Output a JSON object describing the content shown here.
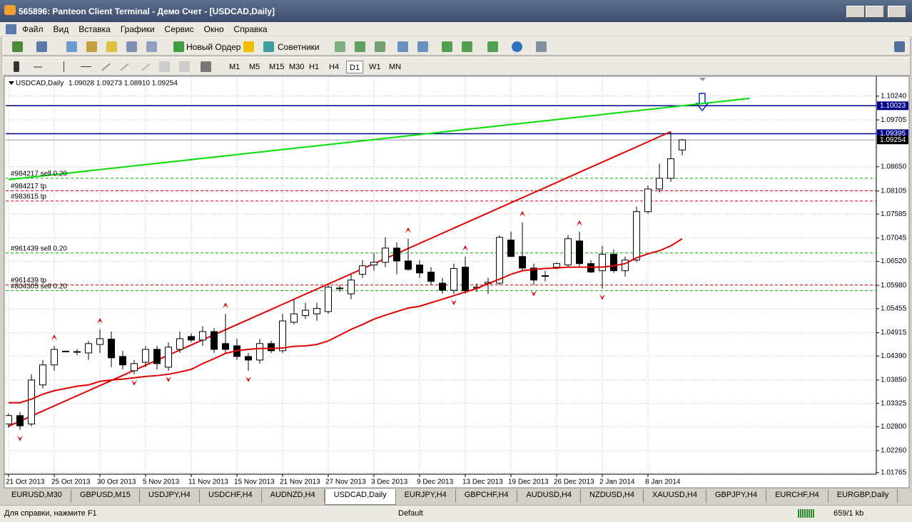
{
  "window": {
    "title": "565896: Panteon Client Terminal - Демо Счет - [USDCAD,Daily]",
    "menu": [
      "Файл",
      "Вид",
      "Вставка",
      "Графики",
      "Сервис",
      "Окно",
      "Справка"
    ],
    "toolbar": {
      "new_order": "Новый Ордер",
      "experts": "Советники"
    },
    "timeframes": [
      "M1",
      "M5",
      "M15",
      "M30",
      "H1",
      "H4",
      "D1",
      "W1",
      "MN"
    ],
    "active_timeframe": 6
  },
  "chart_data": {
    "type": "candlestick",
    "title": "USDCAD,Daily",
    "subtitle": "1.09028 1.09273 1.08910 1.09254",
    "categories": [
      "21 Oct 2013",
      null,
      null,
      null,
      "25 Oct 2013",
      null,
      null,
      null,
      "30 Oct 2013",
      null,
      null,
      null,
      "5 Nov 2013",
      null,
      null,
      null,
      "11 Nov 2013",
      null,
      null,
      null,
      "15 Nov 2013",
      null,
      null,
      null,
      "21 Nov 2013",
      null,
      null,
      null,
      "27 Nov 2013",
      null,
      null,
      null,
      "3 Dec 2013",
      null,
      null,
      null,
      "9 Dec 2013",
      null,
      null,
      null,
      "13 Dec 2013",
      null,
      null,
      null,
      "19 Dec 2013",
      null,
      null,
      null,
      "26 Dec 2013",
      null,
      null,
      null,
      "2 Jan 2014",
      null,
      null,
      null,
      "8 Jan 2014",
      null,
      null,
      null
    ],
    "open": [
      1.0286,
      1.0305,
      1.0286,
      1.0374,
      1.0419,
      1.0449,
      1.0449,
      1.0446,
      1.0465,
      1.0477,
      1.0438,
      1.0406,
      1.0425,
      1.0454,
      1.0414,
      1.0454,
      1.0483,
      1.0475,
      1.0494,
      1.0467,
      1.0462,
      1.0438,
      1.043,
      1.0467,
      1.0451,
      1.0515,
      1.053,
      1.0534,
      1.0539,
      1.0591,
      1.0579,
      1.0623,
      1.0644,
      1.065,
      1.0682,
      1.0653,
      1.0644,
      1.0628,
      1.0603,
      1.0587,
      1.0639,
      1.0592,
      1.0602,
      1.0603,
      1.07,
      1.0663,
      1.0637,
      1.062,
      1.0639,
      1.0644,
      1.0698,
      1.0647,
      1.0631,
      1.0668,
      1.0631,
      1.0655,
      1.0764,
      1.0815,
      1.0839,
      1.09028
    ],
    "high": [
      1.031,
      1.0313,
      1.0398,
      1.043,
      1.0462,
      1.0451,
      1.0454,
      1.0473,
      1.0499,
      1.0494,
      1.0451,
      1.043,
      1.0462,
      1.0462,
      1.047,
      1.0494,
      1.049,
      1.0506,
      1.0502,
      1.0534,
      1.0478,
      1.0446,
      1.0478,
      1.0473,
      1.0534,
      1.0567,
      1.0559,
      1.0559,
      1.0599,
      1.0599,
      1.0623,
      1.0655,
      1.0671,
      1.0706,
      1.0695,
      1.0703,
      1.0655,
      1.0639,
      1.0615,
      1.0647,
      1.0663,
      1.0602,
      1.0615,
      1.0711,
      1.0719,
      1.074,
      1.0647,
      1.0631,
      1.065,
      1.0711,
      1.0719,
      1.0655,
      1.0687,
      1.0679,
      1.0663,
      1.0775,
      1.0823,
      1.0872,
      1.0944,
      1.09273
    ],
    "low": [
      1.0278,
      1.0273,
      1.0281,
      1.0366,
      1.0406,
      1.0448,
      1.0441,
      1.043,
      1.0446,
      1.0414,
      1.0409,
      1.0398,
      1.0414,
      1.0409,
      1.0406,
      1.0446,
      1.047,
      1.0462,
      1.0446,
      1.0446,
      1.043,
      1.0406,
      1.0422,
      1.0446,
      1.0446,
      1.051,
      1.0522,
      1.0518,
      1.0534,
      1.0583,
      1.0567,
      1.0615,
      1.0631,
      1.0639,
      1.0623,
      1.0631,
      1.0615,
      1.0599,
      1.0579,
      1.0579,
      1.0579,
      1.0583,
      1.0579,
      1.0599,
      1.0663,
      1.0631,
      1.0599,
      1.0607,
      1.0634,
      1.0639,
      1.0639,
      1.0626,
      1.0591,
      1.0626,
      1.0618,
      1.065,
      1.0759,
      1.0807,
      1.0831,
      1.0891
    ],
    "close": [
      1.0305,
      1.0282,
      1.0385,
      1.0419,
      1.0454,
      1.045,
      1.0449,
      1.0467,
      1.0478,
      1.0435,
      1.0419,
      1.0422,
      1.0454,
      1.0422,
      1.0459,
      1.0478,
      1.0475,
      1.0494,
      1.0454,
      1.0454,
      1.0438,
      1.043,
      1.0467,
      1.0451,
      1.0518,
      1.0534,
      1.0542,
      1.0546,
      1.0594,
      1.0592,
      1.061,
      1.0642,
      1.065,
      1.0682,
      1.0653,
      1.0634,
      1.0626,
      1.0607,
      1.0587,
      1.0636,
      1.0586,
      1.0594,
      1.0605,
      1.0706,
      1.0663,
      1.0637,
      1.061,
      1.062,
      1.0647,
      1.0703,
      1.0647,
      1.0628,
      1.0668,
      1.0631,
      1.0655,
      1.0764,
      1.0815,
      1.0839,
      1.0883,
      1.09254
    ],
    "colors": {
      "up": "#ffffff",
      "down": "#000000",
      "wick": "#000000"
    },
    "ma": {
      "color": "#e00000",
      "values": [
        1.0334,
        1.0334,
        1.0342,
        1.0353,
        1.0361,
        1.0366,
        1.0371,
        1.0374,
        1.0382,
        1.0385,
        1.0387,
        1.039,
        1.0393,
        1.0395,
        1.0398,
        1.0403,
        1.0409,
        1.0422,
        1.0433,
        1.0445,
        1.0451,
        1.0454,
        1.0456,
        1.0456,
        1.0457,
        1.0461,
        1.0462,
        1.0465,
        1.0473,
        1.0486,
        1.0499,
        1.051,
        1.0522,
        1.0531,
        1.0539,
        1.0547,
        1.0551,
        1.0559,
        1.0567,
        1.0575,
        1.0583,
        1.0591,
        1.0602,
        1.0612,
        1.0623,
        1.0631,
        1.0634,
        1.0636,
        1.0637,
        1.0639,
        1.0639,
        1.0639,
        1.0639,
        1.0642,
        1.0647,
        1.066,
        1.0669,
        1.0676,
        1.0687,
        1.0703
      ]
    },
    "trendlines": [
      {
        "color": "#e00000",
        "from": [
          0,
          1.0281
        ],
        "to": [
          58,
          1.0944
        ]
      },
      {
        "color": "#00e000",
        "from": [
          0,
          1.0836
        ],
        "to": [
          64.9,
          1.1019
        ]
      }
    ],
    "levels": [
      {
        "value": 1.10023,
        "color": "#00008b"
      },
      {
        "value": 1.09395,
        "color": "#00008b"
      }
    ],
    "orders": [
      {
        "label": "#984217 sell 0.20",
        "value": 1.0839,
        "color": "#00b000"
      },
      {
        "label": "#984217 tp",
        "value": 1.0811,
        "color": "#e00000"
      },
      {
        "label": "#983615 tp",
        "value": 1.0788,
        "color": "#e00000"
      },
      {
        "label": "#961439 sell 0.20",
        "value": 1.0671,
        "color": "#00b000"
      },
      {
        "label": "#961439 tp",
        "value": 1.0599,
        "color": "#e00000"
      },
      {
        "label": "#804305 sell 0.20",
        "value": 1.0586,
        "color": "#00b000"
      }
    ],
    "fractals": [
      {
        "index": 4,
        "dir": "up"
      },
      {
        "index": 8,
        "dir": "up"
      },
      {
        "index": 19,
        "dir": "up"
      },
      {
        "index": 35,
        "dir": "up"
      },
      {
        "index": 40,
        "dir": "up"
      },
      {
        "index": 45,
        "dir": "up"
      },
      {
        "index": 50,
        "dir": "up"
      },
      {
        "index": 1,
        "dir": "down"
      },
      {
        "index": 11,
        "dir": "down"
      },
      {
        "index": 14,
        "dir": "down"
      },
      {
        "index": 21,
        "dir": "down"
      },
      {
        "index": 39,
        "dir": "down"
      },
      {
        "index": 46,
        "dir": "down"
      },
      {
        "index": 52,
        "dir": "down"
      }
    ],
    "ylim": [
      1.0173,
      1.1067
    ],
    "yticks": [
      {
        "value": 1.1024,
        "label": "1.10240"
      },
      1.09705,
      {
        "value": 1.0865,
        "label": "1.08650"
      },
      1.08105,
      1.07585,
      1.07045,
      {
        "value": 1.0652,
        "label": "1.06520"
      },
      {
        "value": 1.0598,
        "label": "1.05980"
      },
      1.05455,
      1.04915,
      {
        "value": 1.0439,
        "label": "1.04390"
      },
      {
        "value": 1.0385,
        "label": "1.03850"
      },
      1.03325,
      {
        "value": 1.028,
        "label": "1.02800"
      },
      {
        "value": 1.0226,
        "label": "1.02260"
      },
      1.01765
    ],
    "grid": true
  },
  "tabs": [
    "EURUSD,M30",
    "GBPUSD,M15",
    "USDJPY,H4",
    "USDCHF,H4",
    "AUDNZD,H4",
    "USDCAD,Daily",
    "EURJPY,H4",
    "GBPCHF,H4",
    "AUDUSD,H4",
    "NZDUSD,H4",
    "XAUUSD,H4",
    "GBPJPY,H4",
    "EURCHF,H4",
    "EURGBP,Daily"
  ],
  "active_tab": 5,
  "status": {
    "help": "Для справки, нажмите F1",
    "profile": "Default",
    "traffic": "659/1 kb"
  }
}
